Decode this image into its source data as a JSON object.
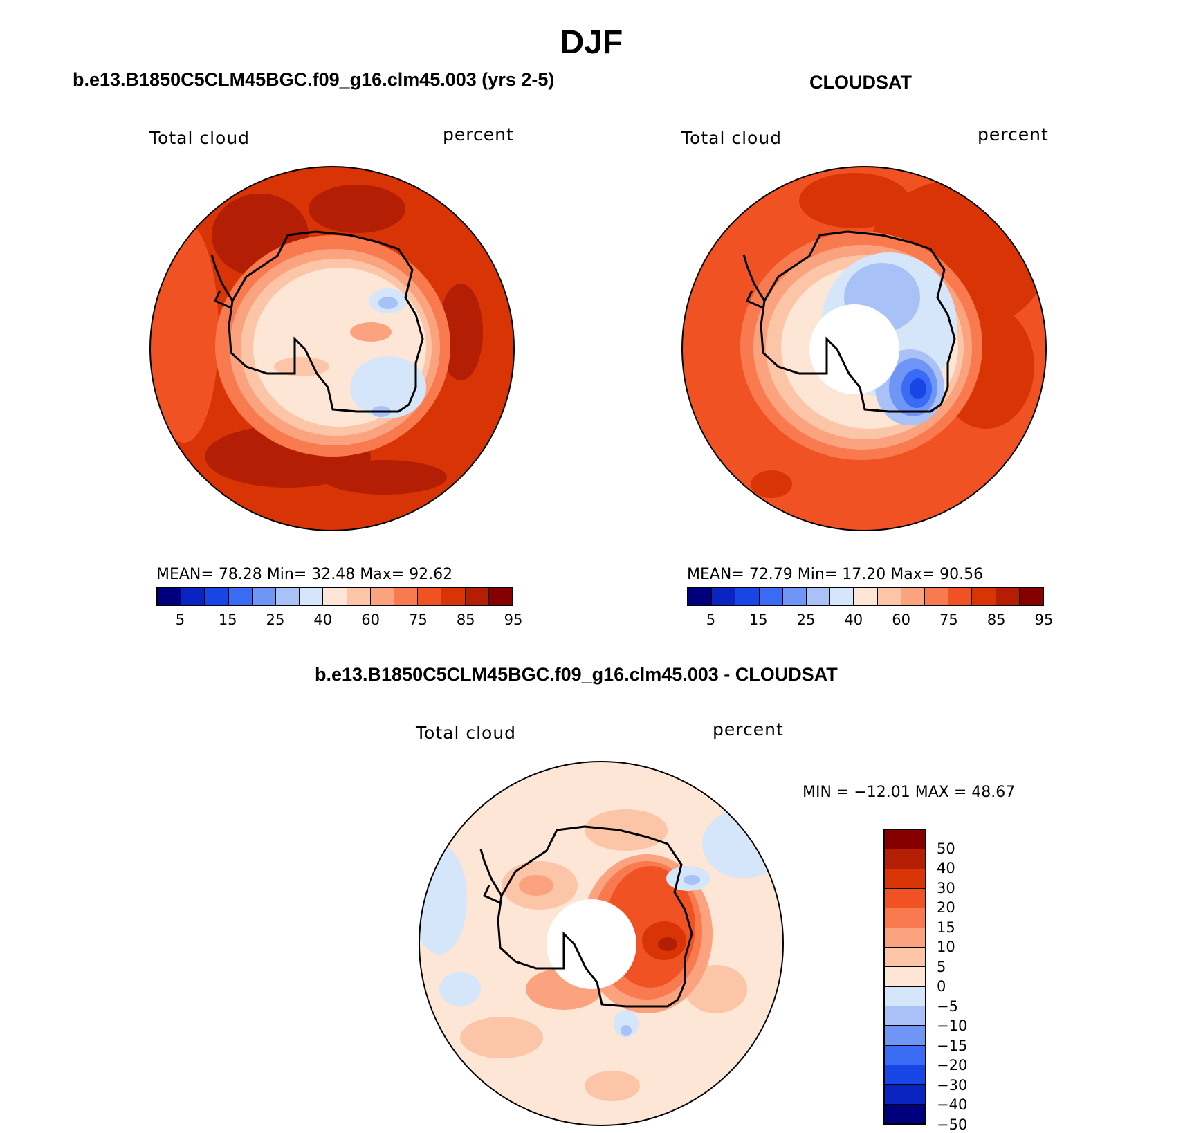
{
  "title": "DJF",
  "panels": {
    "model": {
      "heading": "b.e13.B1850C5CLM45BGC.f09_g16.clm45.003 (yrs 2-5)",
      "variable": "Total cloud",
      "units": "percent",
      "stats": "MEAN=   78.28   Min=   32.48   Max=   92.62"
    },
    "obs": {
      "heading": "CLOUDSAT",
      "variable": "Total cloud",
      "units": "percent",
      "stats": "MEAN=   72.79   Min=   17.20   Max=   90.56"
    },
    "diff": {
      "heading": "b.e13.B1850C5CLM45BGC.f09_g16.clm45.003 - CLOUDSAT",
      "variable": "Total cloud",
      "units": "percent",
      "stats": "MIN = −12.01 MAX =   48.67"
    }
  },
  "colorbar_abs": {
    "colors": [
      "#00007f",
      "#0a24c2",
      "#1745e6",
      "#3a6bf5",
      "#6f95f7",
      "#a8c2f7",
      "#d6e6fa",
      "#fde6d6",
      "#fcc5a8",
      "#fba37e",
      "#f97a4e",
      "#f05224",
      "#d93405",
      "#b31e04",
      "#860000"
    ],
    "tick_labels": [
      "5",
      "15",
      "25",
      "40",
      "60",
      "75",
      "85",
      "95"
    ]
  },
  "colorbar_diff": {
    "colors": [
      "#860000",
      "#b31e04",
      "#d93405",
      "#f05224",
      "#f97a4e",
      "#fba37e",
      "#fcc5a8",
      "#fde6d6",
      "#d6e6fa",
      "#a8c2f7",
      "#6f95f7",
      "#3a6bf5",
      "#1745e6",
      "#0a24c2",
      "#00007f"
    ],
    "tick_labels": [
      "50",
      "40",
      "30",
      "20",
      "15",
      "10",
      "5",
      "0",
      "−5",
      "−10",
      "−15",
      "−20",
      "−30",
      "−40",
      "−50"
    ]
  }
}
